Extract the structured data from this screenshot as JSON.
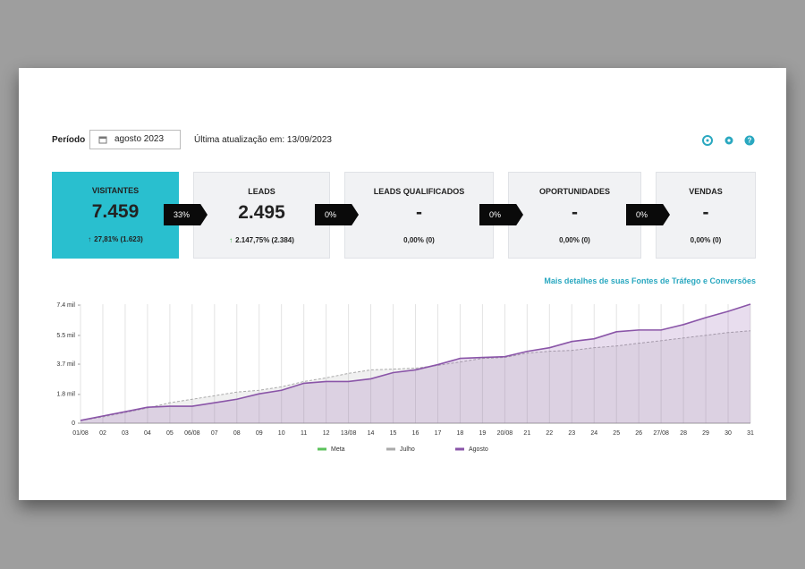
{
  "header": {
    "period_label": "Período",
    "period_value": "agosto 2023",
    "last_update": "Última atualização em: 13/09/2023"
  },
  "cards": [
    {
      "title": "VISITANTES",
      "value": "7.459",
      "change": "27,81% (1.623)",
      "trend": "up",
      "trend_color": "#333333",
      "color": "#29bfcf"
    },
    {
      "title": "LEADS",
      "value": "2.495",
      "change": "2.147,75% (2.384)",
      "trend": "up",
      "trend_color": "#3cb043",
      "color": "#f1f2f4"
    },
    {
      "title": "LEADS QUALIFICADOS",
      "value": "-",
      "change": "0,00% (0)",
      "color": "#f1f2f4"
    },
    {
      "title": "OPORTUNIDADES",
      "value": "-",
      "change": "0,00% (0)",
      "color": "#f1f2f4"
    },
    {
      "title": "VENDAS",
      "value": "-",
      "change": "0,00% (0)",
      "color": "#f1f2f4"
    }
  ],
  "conversions": [
    "33%",
    "0%",
    "0%",
    "0%"
  ],
  "link": "Mais detalhes de suas Fontes de Tráfego e Conversões",
  "chart_data": {
    "type": "area",
    "categories": [
      "01/08",
      "02",
      "03",
      "04",
      "05",
      "06/08",
      "07",
      "08",
      "09",
      "10",
      "11",
      "12",
      "13/08",
      "14",
      "15",
      "16",
      "17",
      "18",
      "19",
      "20/08",
      "21",
      "22",
      "23",
      "24",
      "25",
      "26",
      "27/08",
      "28",
      "29",
      "30",
      "31"
    ],
    "series": [
      {
        "name": "Meta",
        "color": "#5cc25c",
        "values": [
          null,
          null,
          null,
          null,
          null,
          null,
          null,
          null,
          null,
          null,
          null,
          null,
          null,
          null,
          null,
          null,
          null,
          null,
          null,
          null,
          null,
          null,
          null,
          null,
          null,
          null,
          null,
          null,
          null,
          null,
          null
        ]
      },
      {
        "name": "Julho",
        "color": "#aaaaaa",
        "dashed": true,
        "values": [
          170,
          390,
          670,
          950,
          1280,
          1500,
          1720,
          1950,
          2060,
          2280,
          2610,
          2840,
          3120,
          3340,
          3390,
          3450,
          3620,
          3840,
          4060,
          4120,
          4390,
          4510,
          4560,
          4730,
          4840,
          5010,
          5170,
          5340,
          5510,
          5680,
          5790
        ]
      },
      {
        "name": "Agosto",
        "color": "#8a55a8",
        "values": [
          170,
          450,
          720,
          1000,
          1060,
          1060,
          1280,
          1500,
          1840,
          2060,
          2500,
          2610,
          2610,
          2780,
          3170,
          3340,
          3670,
          4060,
          4120,
          4170,
          4500,
          4730,
          5120,
          5290,
          5730,
          5840,
          5840,
          6180,
          6620,
          7010,
          7459
        ]
      }
    ],
    "ylim": [
      0,
      7459
    ],
    "yticks": [
      0,
      {
        "value": 1800,
        "label": "1.8 mil"
      },
      {
        "value": 3700,
        "label": "3.7 mil"
      },
      {
        "value": 5500,
        "label": "5.5 mil"
      },
      {
        "value": 7400,
        "label": "7.4 mil"
      }
    ],
    "grid": true,
    "legend": "bottom"
  }
}
